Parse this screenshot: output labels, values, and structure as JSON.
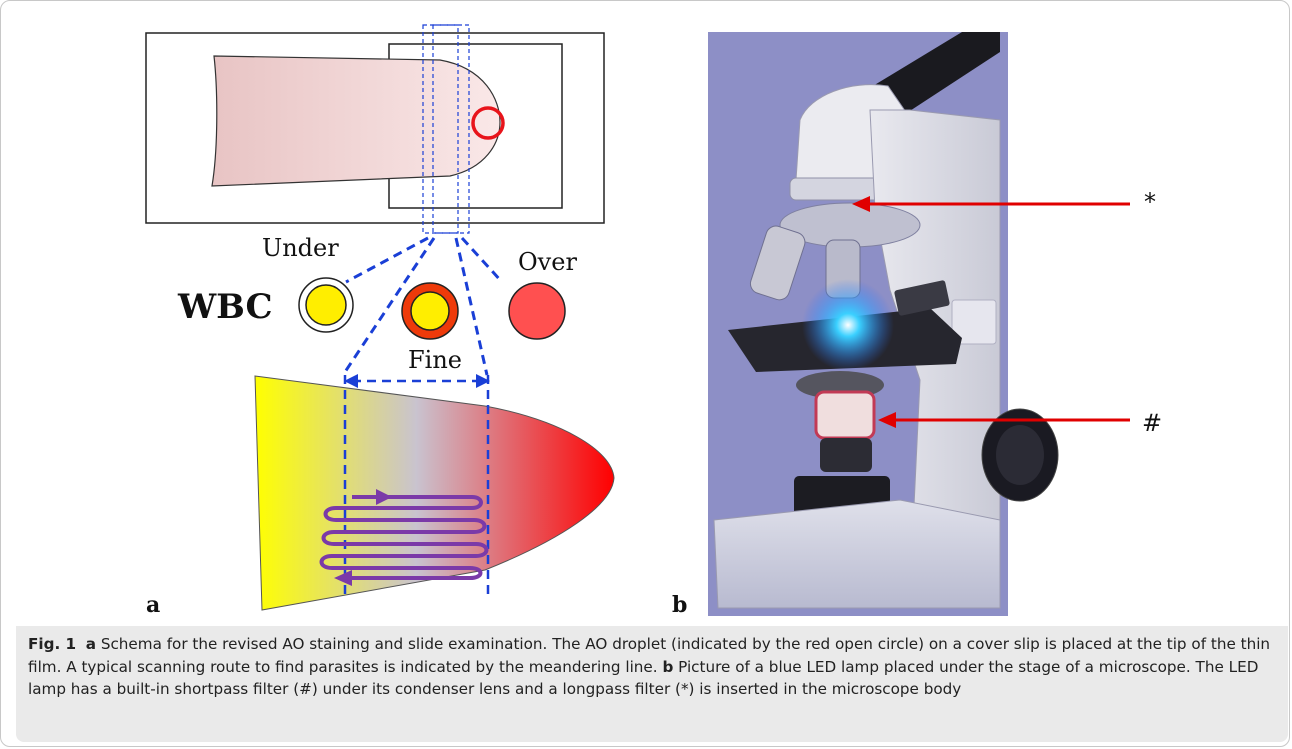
{
  "panel_a": {
    "letter": "a",
    "labels": {
      "wbc": "WBC",
      "under": "Under",
      "fine": "Fine",
      "over": "Over"
    },
    "colors": {
      "finger_fill": "#f5d6d6",
      "droplet_circle": "#e8141b",
      "dashed_lines": "#1a3fd6",
      "wbc_yellow": "#ffee00",
      "wbc_red": "#ff5050",
      "wbc_orange_ring": "#ee3a0a",
      "scan_route": "#7b3aa8",
      "film_gradient": [
        "#ffff00",
        "#b9b9d6",
        "#ff0000"
      ]
    }
  },
  "panel_b": {
    "letter": "b",
    "markers": {
      "longpass": "*",
      "shortpass": "#"
    },
    "colors": {
      "background": "#8d8fc6",
      "arrow": "#e00000",
      "led_glow": "#2aa8ff"
    }
  },
  "caption": {
    "fig_label": "Fig. 1",
    "a_label": "a",
    "a_text": "Schema for the revised AO staining and slide examination. The AO droplet (indicated by the red open circle) on a cover slip is placed at the tip of the thin film. A typical scanning route to find parasites is indicated by the meandering line.",
    "b_label": "b",
    "b_text": "Picture of a blue LED lamp placed under the stage of a microscope. The LED lamp has a built-in shortpass filter (#) under its condenser lens and a longpass filter (*) is inserted in the microscope body"
  }
}
